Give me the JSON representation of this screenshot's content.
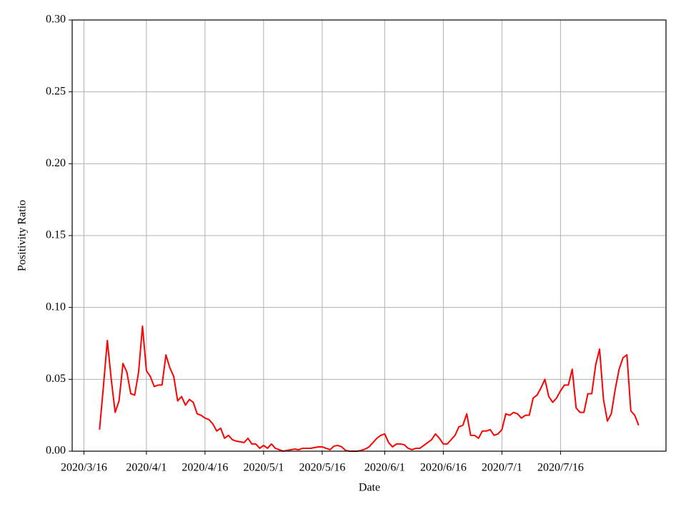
{
  "chart_data": {
    "type": "line",
    "x_label": "Date",
    "y_label": "Positivity Ratio",
    "x": [
      "2020-03-20",
      "2020-03-21",
      "2020-03-22",
      "2020-03-23",
      "2020-03-24",
      "2020-03-25",
      "2020-03-26",
      "2020-03-27",
      "2020-03-28",
      "2020-03-29",
      "2020-03-30",
      "2020-03-31",
      "2020-04-01",
      "2020-04-02",
      "2020-04-03",
      "2020-04-04",
      "2020-04-05",
      "2020-04-06",
      "2020-04-07",
      "2020-04-08",
      "2020-04-09",
      "2020-04-10",
      "2020-04-11",
      "2020-04-12",
      "2020-04-13",
      "2020-04-14",
      "2020-04-15",
      "2020-04-16",
      "2020-04-17",
      "2020-04-18",
      "2020-04-19",
      "2020-04-20",
      "2020-04-21",
      "2020-04-22",
      "2020-04-23",
      "2020-04-24",
      "2020-04-25",
      "2020-04-26",
      "2020-04-27",
      "2020-04-28",
      "2020-04-29",
      "2020-04-30",
      "2020-05-01",
      "2020-05-02",
      "2020-05-03",
      "2020-05-04",
      "2020-05-05",
      "2020-05-06",
      "2020-05-07",
      "2020-05-08",
      "2020-05-09",
      "2020-05-10",
      "2020-05-11",
      "2020-05-12",
      "2020-05-13",
      "2020-05-14",
      "2020-05-15",
      "2020-05-16",
      "2020-05-17",
      "2020-05-18",
      "2020-05-19",
      "2020-05-20",
      "2020-05-21",
      "2020-05-22",
      "2020-05-23",
      "2020-05-24",
      "2020-05-25",
      "2020-05-26",
      "2020-05-27",
      "2020-05-28",
      "2020-05-29",
      "2020-05-30",
      "2020-05-31",
      "2020-06-01",
      "2020-06-02",
      "2020-06-03",
      "2020-06-04",
      "2020-06-05",
      "2020-06-06",
      "2020-06-07",
      "2020-06-08",
      "2020-06-09",
      "2020-06-10",
      "2020-06-11",
      "2020-06-12",
      "2020-06-13",
      "2020-06-14",
      "2020-06-15",
      "2020-06-16",
      "2020-06-17",
      "2020-06-18",
      "2020-06-19",
      "2020-06-20",
      "2020-06-21",
      "2020-06-22",
      "2020-06-23",
      "2020-06-24",
      "2020-06-25",
      "2020-06-26",
      "2020-06-27",
      "2020-06-28",
      "2020-06-29",
      "2020-06-30",
      "2020-07-01",
      "2020-07-02",
      "2020-07-03",
      "2020-07-04",
      "2020-07-05",
      "2020-07-06",
      "2020-07-07",
      "2020-07-08",
      "2020-07-09",
      "2020-07-10",
      "2020-07-11",
      "2020-07-12",
      "2020-07-13",
      "2020-07-14",
      "2020-07-15",
      "2020-07-16",
      "2020-07-17",
      "2020-07-18",
      "2020-07-19",
      "2020-07-20",
      "2020-07-21",
      "2020-07-22",
      "2020-07-23",
      "2020-07-24",
      "2020-07-25",
      "2020-07-26",
      "2020-07-27",
      "2020-07-28",
      "2020-07-29",
      "2020-07-30",
      "2020-07-31",
      "2020-08-01",
      "2020-08-02",
      "2020-08-03",
      "2020-08-04",
      "2020-08-05"
    ],
    "series": [
      {
        "color": "#ff0000",
        "values": [
          0.015,
          0.045,
          0.077,
          0.05,
          0.027,
          0.035,
          0.061,
          0.055,
          0.04,
          0.039,
          0.055,
          0.087,
          0.056,
          0.052,
          0.045,
          0.046,
          0.046,
          0.067,
          0.058,
          0.052,
          0.035,
          0.038,
          0.032,
          0.036,
          0.034,
          0.026,
          0.025,
          0.023,
          0.022,
          0.019,
          0.014,
          0.016,
          0.009,
          0.011,
          0.008,
          0.007,
          0.0065,
          0.006,
          0.009,
          0.005,
          0.005,
          0.002,
          0.004,
          0.002,
          0.005,
          0.002,
          0.001,
          0.0,
          0.0005,
          0.001,
          0.0015,
          0.001,
          0.002,
          0.002,
          0.002,
          0.0025,
          0.003,
          0.003,
          0.002,
          0.001,
          0.0035,
          0.004,
          0.003,
          0.0005,
          0.0,
          0.0,
          0.0,
          0.0005,
          0.0015,
          0.003,
          0.006,
          0.009,
          0.011,
          0.012,
          0.006,
          0.003,
          0.005,
          0.005,
          0.0045,
          0.002,
          0.001,
          0.002,
          0.002,
          0.004,
          0.006,
          0.008,
          0.012,
          0.009,
          0.005,
          0.005,
          0.008,
          0.011,
          0.017,
          0.018,
          0.026,
          0.011,
          0.011,
          0.009,
          0.014,
          0.014,
          0.015,
          0.011,
          0.012,
          0.015,
          0.026,
          0.025,
          0.027,
          0.026,
          0.023,
          0.025,
          0.025,
          0.037,
          0.039,
          0.044,
          0.05,
          0.038,
          0.034,
          0.037,
          0.042,
          0.046,
          0.046,
          0.057,
          0.03,
          0.027,
          0.027,
          0.04,
          0.04,
          0.06,
          0.071,
          0.036,
          0.021,
          0.026,
          0.043,
          0.057,
          0.065,
          0.067,
          0.028,
          0.025,
          0.018
        ]
      }
    ],
    "xlim": [
      "2020-03-13",
      "2020-08-12"
    ],
    "xticks": [
      {
        "value": "2020-03-16",
        "label": "2020/3/16"
      },
      {
        "value": "2020-04-01",
        "label": "2020/4/1"
      },
      {
        "value": "2020-04-16",
        "label": "2020/4/16"
      },
      {
        "value": "2020-05-01",
        "label": "2020/5/1"
      },
      {
        "value": "2020-05-16",
        "label": "2020/5/16"
      },
      {
        "value": "2020-06-01",
        "label": "2020/6/1"
      },
      {
        "value": "2020-06-16",
        "label": "2020/6/16"
      },
      {
        "value": "2020-07-01",
        "label": "2020/7/1"
      },
      {
        "value": "2020-07-16",
        "label": "2020/7/16"
      }
    ],
    "ylim": [
      0,
      0.3
    ],
    "yticks": [
      {
        "value": 0,
        "label": "0.00"
      },
      0.05,
      {
        "value": 0.1,
        "label": "0.10"
      },
      0.15,
      {
        "value": 0.2,
        "label": "0.20"
      },
      0.25,
      {
        "value": 0.3,
        "label": "0.30"
      }
    ],
    "grid": true
  }
}
